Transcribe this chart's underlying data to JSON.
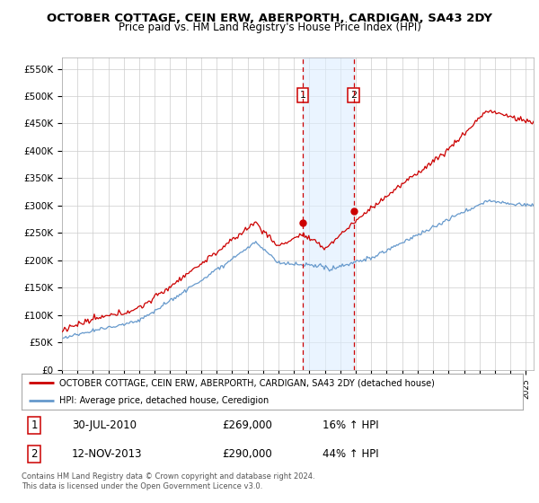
{
  "title": "OCTOBER COTTAGE, CEIN ERW, ABERPORTH, CARDIGAN, SA43 2DY",
  "subtitle": "Price paid vs. HM Land Registry's House Price Index (HPI)",
  "ylabel_ticks": [
    "£0",
    "£50K",
    "£100K",
    "£150K",
    "£200K",
    "£250K",
    "£300K",
    "£350K",
    "£400K",
    "£450K",
    "£500K",
    "£550K"
  ],
  "ytick_values": [
    0,
    50000,
    100000,
    150000,
    200000,
    250000,
    300000,
    350000,
    400000,
    450000,
    500000,
    550000
  ],
  "ylim": [
    0,
    570000
  ],
  "xlim_start": 1995.0,
  "xlim_end": 2025.5,
  "red_line_color": "#cc0000",
  "blue_line_color": "#6699cc",
  "marker1_date": 2010.58,
  "marker2_date": 2013.87,
  "marker1_value": 269000,
  "marker2_value": 290000,
  "marker1_label": "30-JUL-2010",
  "marker1_price": "£269,000",
  "marker1_hpi": "16% ↑ HPI",
  "marker2_label": "12-NOV-2013",
  "marker2_price": "£290,000",
  "marker2_hpi": "44% ↑ HPI",
  "legend_line1": "OCTOBER COTTAGE, CEIN ERW, ABERPORTH, CARDIGAN, SA43 2DY (detached house)",
  "legend_line2": "HPI: Average price, detached house, Ceredigion",
  "footnote": "Contains HM Land Registry data © Crown copyright and database right 2024.\nThis data is licensed under the Open Government Licence v3.0.",
  "background_color": "#ffffff",
  "grid_color": "#cccccc",
  "shade_color": "#ddeeff"
}
